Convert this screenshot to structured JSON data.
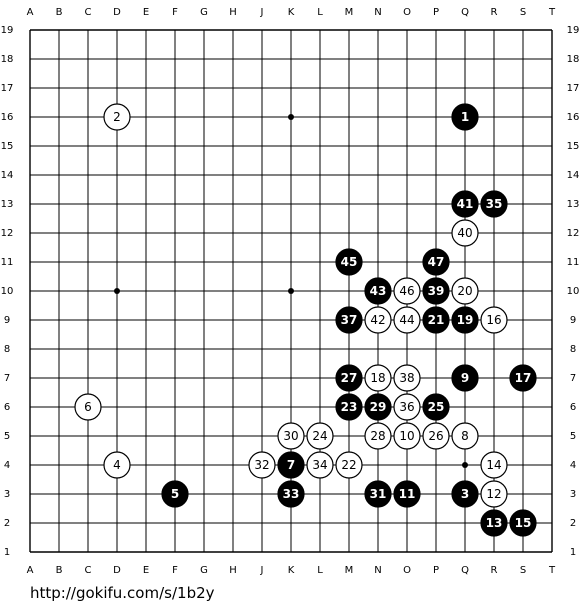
{
  "board": {
    "size": 19,
    "column_labels": [
      "A",
      "B",
      "C",
      "D",
      "E",
      "F",
      "G",
      "H",
      "J",
      "K",
      "L",
      "M",
      "N",
      "O",
      "P",
      "Q",
      "R",
      "S",
      "T"
    ],
    "row_labels": [
      "1",
      "2",
      "3",
      "4",
      "5",
      "6",
      "7",
      "8",
      "9",
      "10",
      "11",
      "12",
      "13",
      "14",
      "15",
      "16",
      "17",
      "18",
      "19"
    ],
    "hoshi": [
      "D4",
      "K4",
      "Q4",
      "D10",
      "K10",
      "Q10",
      "D16",
      "K16",
      "Q16"
    ],
    "colors": {
      "black": "#000000",
      "white": "#ffffff",
      "line": "#000000",
      "background": "#ffffff"
    }
  },
  "moves": [
    {
      "n": "1",
      "color": "black",
      "point": "Q16"
    },
    {
      "n": "2",
      "color": "white",
      "point": "D16"
    },
    {
      "n": "3",
      "color": "black",
      "point": "Q3"
    },
    {
      "n": "4",
      "color": "white",
      "point": "D4"
    },
    {
      "n": "5",
      "color": "black",
      "point": "F3"
    },
    {
      "n": "6",
      "color": "white",
      "point": "C6"
    },
    {
      "n": "7",
      "color": "black",
      "point": "K4"
    },
    {
      "n": "8",
      "color": "white",
      "point": "Q5"
    },
    {
      "n": "9",
      "color": "black",
      "point": "Q7"
    },
    {
      "n": "10",
      "color": "white",
      "point": "O5"
    },
    {
      "n": "11",
      "color": "black",
      "point": "O3"
    },
    {
      "n": "12",
      "color": "white",
      "point": "R3"
    },
    {
      "n": "13",
      "color": "black",
      "point": "R2"
    },
    {
      "n": "14",
      "color": "white",
      "point": "R4"
    },
    {
      "n": "15",
      "color": "black",
      "point": "S2"
    },
    {
      "n": "16",
      "color": "white",
      "point": "R9"
    },
    {
      "n": "17",
      "color": "black",
      "point": "S7"
    },
    {
      "n": "18",
      "color": "white",
      "point": "N7"
    },
    {
      "n": "19",
      "color": "black",
      "point": "Q9"
    },
    {
      "n": "20",
      "color": "white",
      "point": "Q10"
    },
    {
      "n": "21",
      "color": "black",
      "point": "P9"
    },
    {
      "n": "22",
      "color": "white",
      "point": "M4"
    },
    {
      "n": "23",
      "color": "black",
      "point": "M6"
    },
    {
      "n": "24",
      "color": "white",
      "point": "L5"
    },
    {
      "n": "25",
      "color": "black",
      "point": "P6"
    },
    {
      "n": "26",
      "color": "white",
      "point": "P5"
    },
    {
      "n": "27",
      "color": "black",
      "point": "M7"
    },
    {
      "n": "28",
      "color": "white",
      "point": "N5"
    },
    {
      "n": "29",
      "color": "black",
      "point": "N6"
    },
    {
      "n": "30",
      "color": "white",
      "point": "K5"
    },
    {
      "n": "31",
      "color": "black",
      "point": "N3"
    },
    {
      "n": "32",
      "color": "white",
      "point": "J4"
    },
    {
      "n": "33",
      "color": "black",
      "point": "K3"
    },
    {
      "n": "34",
      "color": "white",
      "point": "L4"
    },
    {
      "n": "35",
      "color": "black",
      "point": "R13"
    },
    {
      "n": "36",
      "color": "white",
      "point": "O6"
    },
    {
      "n": "37",
      "color": "black",
      "point": "M9"
    },
    {
      "n": "38",
      "color": "white",
      "point": "O7"
    },
    {
      "n": "39",
      "color": "black",
      "point": "P10"
    },
    {
      "n": "40",
      "color": "white",
      "point": "Q12"
    },
    {
      "n": "41",
      "color": "black",
      "point": "Q13"
    },
    {
      "n": "42",
      "color": "white",
      "point": "N9"
    },
    {
      "n": "43",
      "color": "black",
      "point": "N10"
    },
    {
      "n": "44",
      "color": "white",
      "point": "O9"
    },
    {
      "n": "45",
      "color": "black",
      "point": "M11"
    },
    {
      "n": "46",
      "color": "white",
      "point": "O10"
    },
    {
      "n": "47",
      "color": "black",
      "point": "P11"
    }
  ],
  "footer": {
    "url": "http://gokifu.com/s/1b2y"
  }
}
